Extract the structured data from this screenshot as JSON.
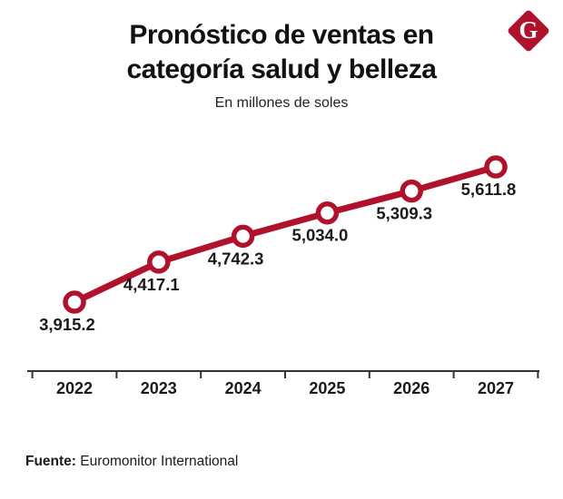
{
  "header": {
    "title_line1": "Pronóstico de ventas en",
    "title_line2": "categoría salud y belleza",
    "subtitle": "En millones de soles",
    "logo_letter": "G"
  },
  "footer": {
    "source_label": "Fuente:",
    "source_value": "Euromonitor International"
  },
  "colors": {
    "line": "#b1122b",
    "marker_fill": "#ffffff",
    "axis": "#333333",
    "text": "#1a1a1a",
    "logo_bg": "#b1122b"
  },
  "chart_data": {
    "type": "line",
    "title": "Pronóstico de ventas en categoría salud y belleza",
    "subtitle": "En millones de soles",
    "categories": [
      "2022",
      "2023",
      "2024",
      "2025",
      "2026",
      "2027"
    ],
    "values": [
      3915.2,
      4417.1,
      4742.3,
      5034.0,
      5309.3,
      5611.8
    ],
    "value_labels": [
      "3,915.2",
      "4,417.1",
      "4,742.3",
      "5,034.0",
      "5,309.3",
      "5,611.8"
    ],
    "xlabel": "",
    "ylabel": "",
    "ylim": [
      3800,
      5750
    ],
    "grid": false,
    "legend": false
  }
}
